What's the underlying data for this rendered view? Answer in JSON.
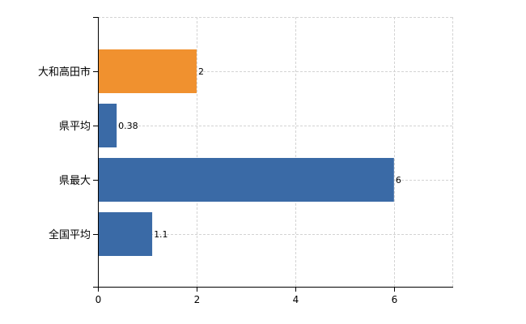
{
  "chart_data": {
    "type": "bar",
    "orientation": "horizontal",
    "categories": [
      "大和高田市",
      "県平均",
      "県最大",
      "全国平均"
    ],
    "values": [
      2,
      0.38,
      6,
      1.1
    ],
    "data_labels": [
      "2",
      "0.38",
      "6",
      "1.1"
    ],
    "bar_colors": [
      "#f0912f",
      "#3a6aa6",
      "#3a6aa6",
      "#3a6aa6"
    ],
    "xlim": [
      0,
      7.2
    ],
    "xticks": [
      0,
      2,
      4,
      6
    ],
    "grid": true,
    "legend": "none",
    "title": "",
    "xlabel": "",
    "ylabel": ""
  }
}
